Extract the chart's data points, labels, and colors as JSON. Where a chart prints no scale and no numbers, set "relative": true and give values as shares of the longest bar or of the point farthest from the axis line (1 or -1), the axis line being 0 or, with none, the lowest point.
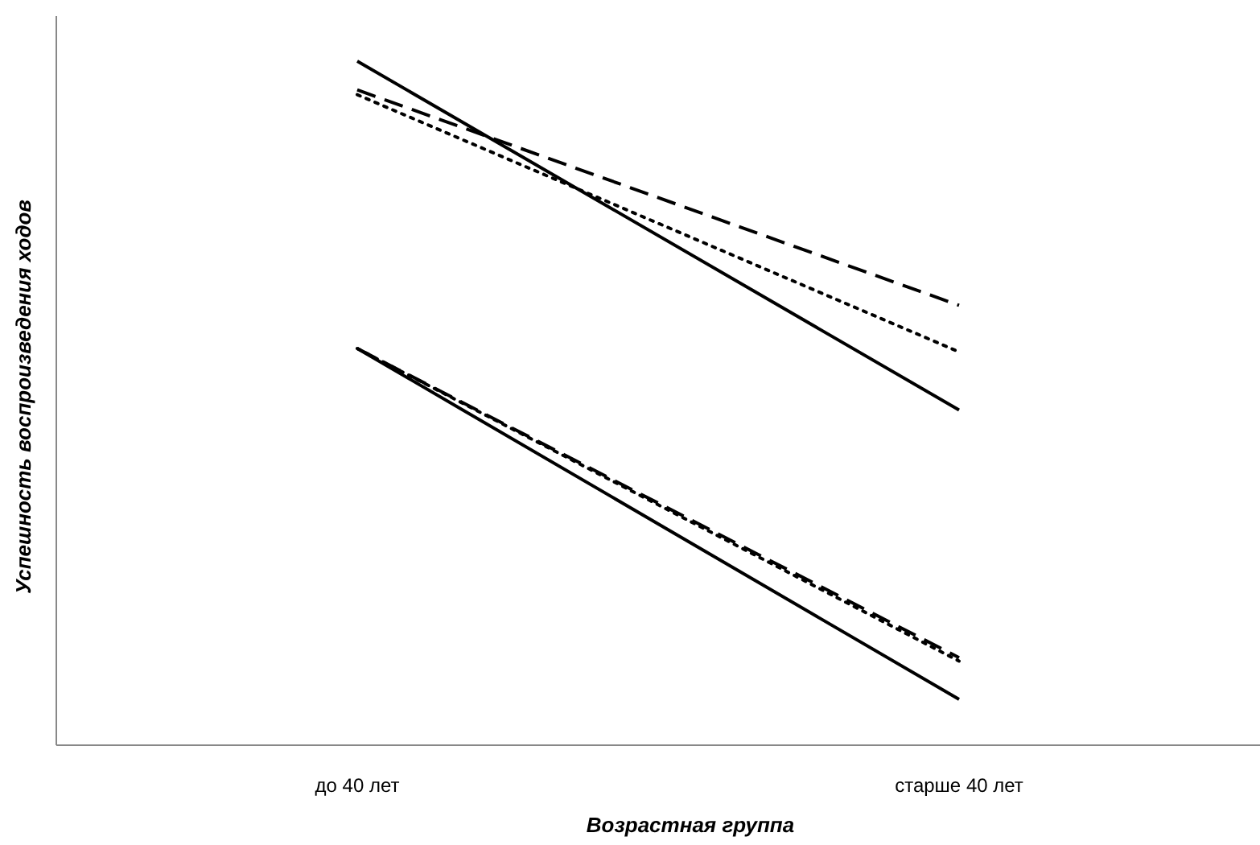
{
  "chart_data": {
    "type": "line",
    "relative": true,
    "xlabel": "Возрастная группа",
    "ylabel": "Успешность воспроизведения ходов",
    "categories": [
      "до 40 лет",
      "старше 40 лет"
    ],
    "series": [
      {
        "color": "#000000",
        "line_style": "solid",
        "values": [
          1,
          0.49
        ]
      },
      {
        "color": "#000000",
        "line_style": "dashed",
        "values": [
          0.958,
          0.643
        ]
      },
      {
        "color": "#000000",
        "line_style": "dotted",
        "values": [
          0.951,
          0.575
        ]
      },
      {
        "color": "#000000",
        "line_style": "solid",
        "values": [
          0.58,
          0.067
        ]
      },
      {
        "color": "#000000",
        "line_style": "dashed",
        "values": [
          0.58,
          0.128
        ]
      },
      {
        "color": "#000000",
        "line_style": "dotted",
        "values": [
          0.58,
          0.123
        ]
      }
    ]
  }
}
